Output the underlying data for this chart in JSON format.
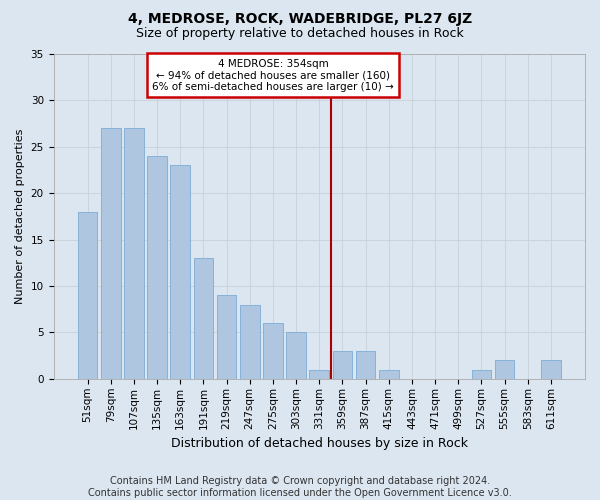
{
  "title": "4, MEDROSE, ROCK, WADEBRIDGE, PL27 6JZ",
  "subtitle": "Size of property relative to detached houses in Rock",
  "xlabel": "Distribution of detached houses by size in Rock",
  "ylabel": "Number of detached properties",
  "footer_line1": "Contains HM Land Registry data © Crown copyright and database right 2024.",
  "footer_line2": "Contains public sector information licensed under the Open Government Licence v3.0.",
  "categories": [
    "51sqm",
    "79sqm",
    "107sqm",
    "135sqm",
    "163sqm",
    "191sqm",
    "219sqm",
    "247sqm",
    "275sqm",
    "303sqm",
    "331sqm",
    "359sqm",
    "387sqm",
    "415sqm",
    "443sqm",
    "471sqm",
    "499sqm",
    "527sqm",
    "555sqm",
    "583sqm",
    "611sqm"
  ],
  "values": [
    18,
    27,
    27,
    24,
    23,
    13,
    9,
    8,
    6,
    5,
    1,
    3,
    3,
    1,
    0,
    0,
    0,
    1,
    2,
    0,
    2
  ],
  "bar_color": "#aec6df",
  "bar_edge_color": "#7aadd4",
  "highlight_index": 11,
  "annotation_line1": "4 MEDROSE: 354sqm",
  "annotation_line2": "← 94% of detached houses are smaller (160)",
  "annotation_line3": "6% of semi-detached houses are larger (10) →",
  "annotation_box_color": "#ffffff",
  "annotation_box_edge_color": "#cc0000",
  "vline_color": "#aa0000",
  "ylim": [
    0,
    35
  ],
  "yticks": [
    0,
    5,
    10,
    15,
    20,
    25,
    30,
    35
  ],
  "grid_color": "#c8d0d8",
  "bg_color": "#dce6f0",
  "title_fontsize": 10,
  "subtitle_fontsize": 9,
  "xlabel_fontsize": 9,
  "ylabel_fontsize": 8,
  "tick_fontsize": 7.5,
  "footer_fontsize": 7
}
